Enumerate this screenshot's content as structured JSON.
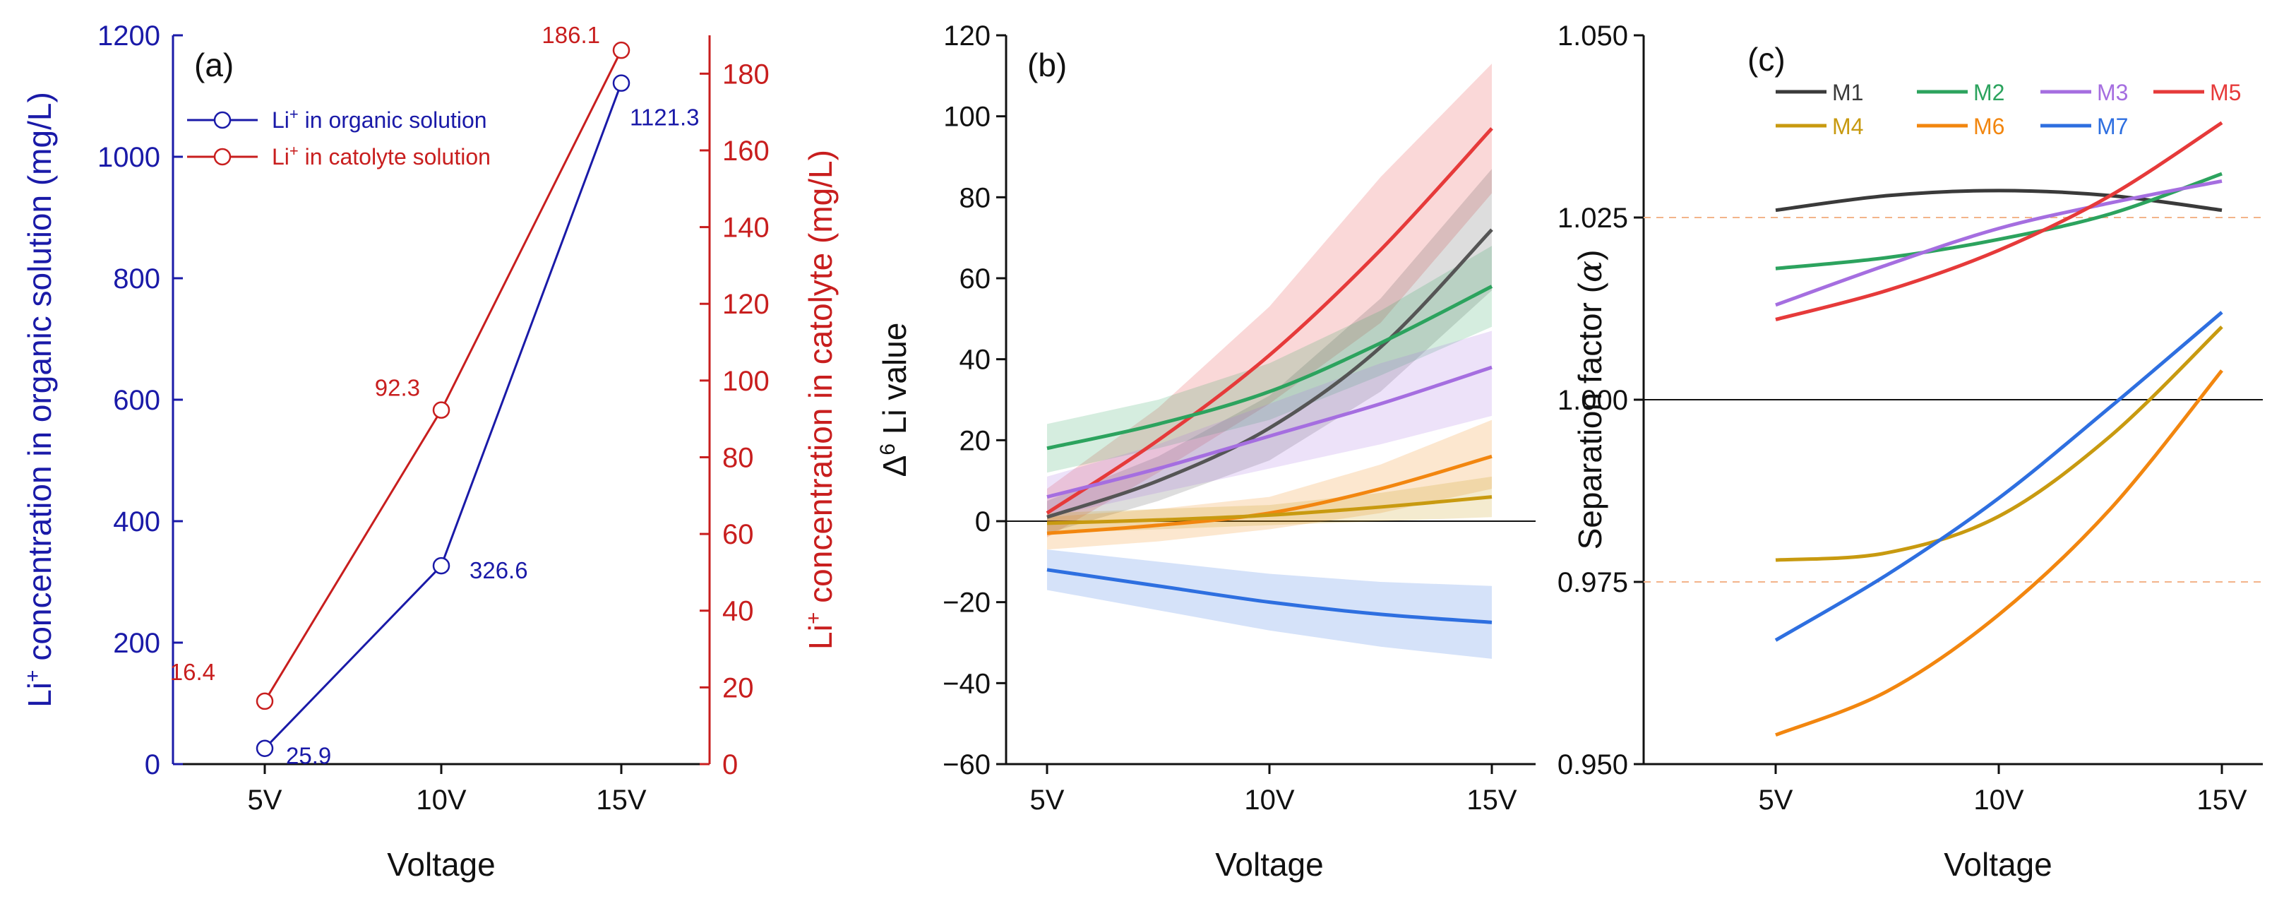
{
  "chart_data": [
    {
      "panel": "(a)",
      "type": "line",
      "categories": [
        "5V",
        "10V",
        "15V"
      ],
      "xlabel": "Voltage",
      "y_left": {
        "label_main": "concentration in organic solution (mg/L)",
        "label_prefix": "Li",
        "label_sup": "+",
        "ylim": [
          0,
          1200
        ],
        "ticks": [
          0,
          200,
          400,
          600,
          800,
          1000,
          1200
        ],
        "color": "#1a1aa8"
      },
      "y_right": {
        "label_main": "concentration in catolyte (mg/L)",
        "label_prefix": "Li",
        "label_sup": "+",
        "ylim": [
          0,
          190
        ],
        "ticks": [
          0,
          20,
          40,
          60,
          80,
          100,
          120,
          140,
          160,
          180
        ],
        "color": "#c81e1e"
      },
      "series": [
        {
          "name": "Li+ in organic solution",
          "legend_prefix": "Li",
          "legend_sup": "+",
          "legend_rest": " in organic solution",
          "axis": "left",
          "color": "#1a1aa8",
          "values": [
            25.9,
            326.6,
            1121.3
          ],
          "labels": [
            "25.9",
            "326.6",
            "1121.3"
          ]
        },
        {
          "name": "Li+ in catolyte solution",
          "legend_prefix": "Li",
          "legend_sup": "+",
          "legend_rest": " in catolyte solution",
          "axis": "right",
          "color": "#c81e1e",
          "values": [
            16.4,
            92.3,
            186.1
          ],
          "labels": [
            "16.4",
            "92.3",
            "186.1"
          ]
        }
      ]
    },
    {
      "panel": "(b)",
      "type": "line",
      "categories": [
        "5V",
        "10V",
        "15V"
      ],
      "xlabel": "Voltage",
      "ylabel_prefix": "Δ",
      "ylabel_sup": "6",
      "ylabel_rest": " Li value",
      "ylim": [
        -60,
        120
      ],
      "ticks": [
        -60,
        -40,
        -20,
        0,
        20,
        40,
        60,
        80,
        100,
        120
      ],
      "zero_line": true,
      "series": [
        {
          "name": "M5",
          "color": "#e63a3a",
          "x": [
            5,
            7.5,
            10,
            12.5,
            15
          ],
          "values": [
            2,
            20,
            41,
            67,
            97
          ],
          "band": [
            [
              -4,
              8
            ],
            [
              12,
              28
            ],
            [
              29,
              53
            ],
            [
              49,
              85
            ],
            [
              81,
              113
            ]
          ]
        },
        {
          "name": "M1",
          "color": "#555555",
          "x": [
            5,
            7.5,
            10,
            12.5,
            15
          ],
          "values": [
            1,
            10,
            23,
            43,
            72
          ],
          "band": [
            [
              -3,
              5
            ],
            [
              5,
              16
            ],
            [
              15,
              31
            ],
            [
              32,
              55
            ],
            [
              57,
              87
            ]
          ]
        },
        {
          "name": "M2",
          "color": "#2ca35e",
          "x": [
            5,
            7.5,
            10,
            12.5,
            15
          ],
          "values": [
            18,
            24,
            32,
            44,
            58
          ],
          "band": [
            [
              12,
              24
            ],
            [
              18,
              30
            ],
            [
              25,
              39
            ],
            [
              36,
              52
            ],
            [
              48,
              68
            ]
          ]
        },
        {
          "name": "M3",
          "color": "#a56ee0",
          "x": [
            5,
            7.5,
            10,
            12.5,
            15
          ],
          "values": [
            6,
            13,
            21,
            29,
            38
          ],
          "band": [
            [
              1,
              11
            ],
            [
              7,
              19
            ],
            [
              13,
              29
            ],
            [
              19,
              39
            ],
            [
              26,
              47
            ]
          ]
        },
        {
          "name": "M6",
          "color": "#f2860f",
          "x": [
            5,
            7.5,
            10,
            12.5,
            15
          ],
          "values": [
            -3,
            -1,
            2,
            8,
            16
          ],
          "band": [
            [
              -7,
              1
            ],
            [
              -5,
              3
            ],
            [
              -2,
              6
            ],
            [
              2,
              14
            ],
            [
              8,
              25
            ]
          ]
        },
        {
          "name": "M4",
          "color": "#c89a10",
          "x": [
            5,
            7.5,
            10,
            12.5,
            15
          ],
          "values": [
            -0.5,
            0.3,
            1.5,
            3.5,
            6
          ],
          "band": [
            [
              -3,
              2
            ],
            [
              -2,
              3
            ],
            [
              -1,
              4
            ],
            [
              0,
              7
            ],
            [
              1,
              11
            ]
          ]
        },
        {
          "name": "M7",
          "color": "#2e6fe0",
          "x": [
            5,
            7.5,
            10,
            12.5,
            15
          ],
          "values": [
            -12,
            -16,
            -20,
            -23,
            -25
          ],
          "band": [
            [
              -17,
              -7
            ],
            [
              -22,
              -10
            ],
            [
              -27,
              -13
            ],
            [
              -31,
              -15
            ],
            [
              -34,
              -16
            ]
          ]
        }
      ]
    },
    {
      "panel": "(c)",
      "type": "line",
      "categories": [
        "5V",
        "10V",
        "15V"
      ],
      "xlabel": "Voltage",
      "ylabel_main": "Separation factor (",
      "ylabel_alpha": "α",
      "ylabel_end": ")",
      "ylim": [
        0.95,
        1.05
      ],
      "ticks": [
        "0.950",
        "0.975",
        "1.000",
        "1.025",
        "1.050"
      ],
      "tick_values": [
        0.95,
        0.975,
        1.0,
        1.025,
        1.05
      ],
      "ref_line": 1.0,
      "dashed_lines": [
        0.975,
        1.025
      ],
      "dashed_color": "#f3b48a",
      "series": [
        {
          "name": "M1",
          "color": "#3a3a3a",
          "x": [
            5,
            7.5,
            10,
            12.5,
            15
          ],
          "values": [
            1.026,
            1.028,
            1.0287,
            1.028,
            1.026
          ]
        },
        {
          "name": "M2",
          "color": "#2ca35e",
          "x": [
            5,
            7.5,
            10,
            12.5,
            15
          ],
          "values": [
            1.018,
            1.0195,
            1.022,
            1.0255,
            1.031
          ]
        },
        {
          "name": "M3",
          "color": "#a56ee0",
          "x": [
            5,
            7.5,
            10,
            12.5,
            15
          ],
          "values": [
            1.013,
            1.0185,
            1.0235,
            1.027,
            1.03
          ]
        },
        {
          "name": "M5",
          "color": "#e63a3a",
          "x": [
            5,
            7.5,
            10,
            12.5,
            15
          ],
          "values": [
            1.011,
            1.015,
            1.0205,
            1.028,
            1.038
          ]
        },
        {
          "name": "M4",
          "color": "#c89a10",
          "x": [
            5,
            7.5,
            10,
            12.5,
            15
          ],
          "values": [
            0.978,
            0.979,
            0.984,
            0.995,
            1.01
          ]
        },
        {
          "name": "M6",
          "color": "#f2860f",
          "x": [
            5,
            7.5,
            10,
            12.5,
            15
          ],
          "values": [
            0.954,
            0.96,
            0.9705,
            0.985,
            1.004
          ]
        },
        {
          "name": "M7",
          "color": "#2e6fe0",
          "x": [
            5,
            7.5,
            10,
            12.5,
            15
          ],
          "values": [
            0.967,
            0.976,
            0.9865,
            0.999,
            1.012
          ]
        }
      ],
      "legend_order": [
        [
          "M1",
          "M2",
          "M3",
          "M5"
        ],
        [
          "M4",
          "M6",
          "M7"
        ]
      ]
    }
  ]
}
